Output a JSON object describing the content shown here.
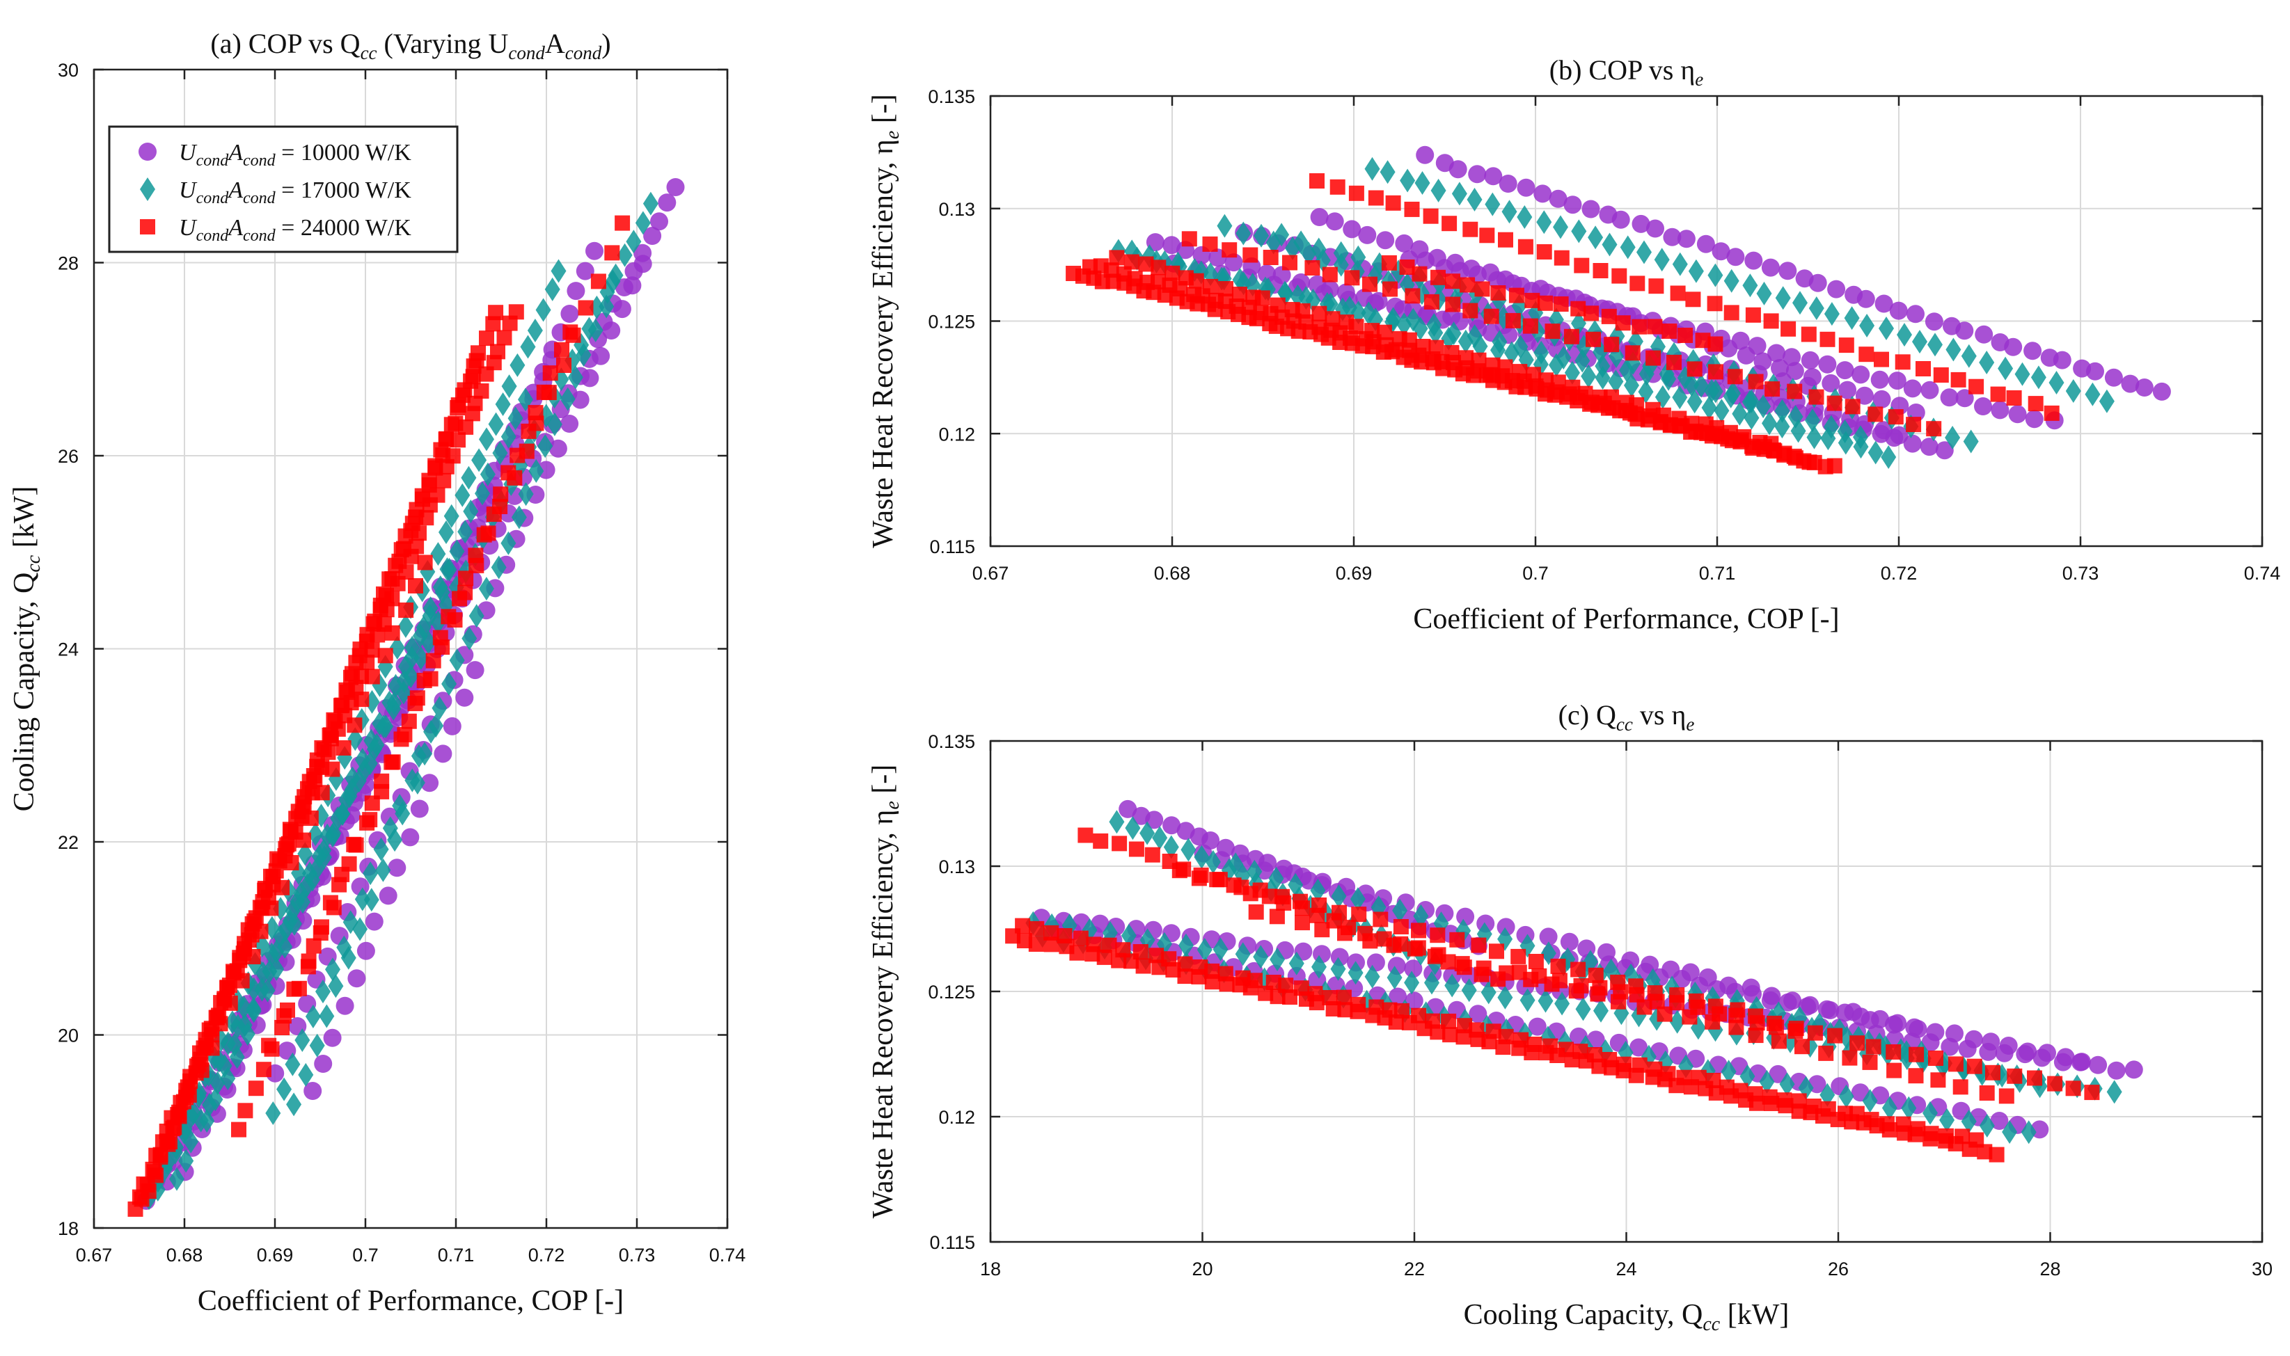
{
  "colors": {
    "s1": "#9933cc",
    "s2": "#119999",
    "s3": "#ff0000",
    "grid": "#d9d9d9",
    "axis": "#222222",
    "text": "#111111"
  },
  "chart_data": [
    {
      "id": "a",
      "type": "scatter",
      "title": "(a) COP vs Q",
      "title_sub": "cc",
      "title_rest": " (Varying U",
      "title_sub2": "cond",
      "title_rest2": "A",
      "title_sub3": "cond",
      "title_end": ")",
      "xlabel": "Coefficient of Performance, COP [-]",
      "ylabel_main": "Cooling Capacity, Q",
      "ylabel_sub": "cc",
      "ylabel_end": " [kW]",
      "xlim": [
        0.67,
        0.74
      ],
      "ylim": [
        18,
        30
      ],
      "xticks": [
        0.67,
        0.68,
        0.69,
        0.7,
        0.71,
        0.72,
        0.73,
        0.74
      ],
      "xtick_labels": [
        "0.67",
        "0.68",
        "0.69",
        "0.7",
        "0.71",
        "0.72",
        "0.73",
        "0.74"
      ],
      "yticks": [
        18,
        20,
        22,
        24,
        26,
        28,
        30
      ],
      "ytick_labels": [
        "18",
        "20",
        "22",
        "24",
        "26",
        "28",
        "30"
      ],
      "grid": true,
      "legend_position": "top-left",
      "legend": [
        {
          "series": "s1",
          "marker": "circle",
          "label_pre": "U",
          "label_sub": "cond",
          "label_mid": "A",
          "label_sub2": "cond",
          "label_val": " = 10000 W/K"
        },
        {
          "series": "s2",
          "marker": "diamond",
          "label_pre": "U",
          "label_sub": "cond",
          "label_mid": "A",
          "label_sub2": "cond",
          "label_val": " = 17000 W/K"
        },
        {
          "series": "s3",
          "marker": "square",
          "label_pre": "U",
          "label_sub": "cond",
          "label_mid": "A",
          "label_sub2": "cond",
          "label_val": " = 24000 W/K"
        }
      ],
      "series": [
        {
          "key": "s1",
          "marker": "circle",
          "segments": [
            {
              "x0": 0.676,
              "y0": 18.3,
              "x1": 0.7345,
              "y1": 28.8,
              "n": 60
            },
            {
              "x0": 0.678,
              "y0": 18.5,
              "x1": 0.7255,
              "y1": 28.1,
              "n": 48
            },
            {
              "x0": 0.68,
              "y0": 18.6,
              "x1": 0.7205,
              "y1": 27.0,
              "n": 40
            },
            {
              "x0": 0.69,
              "y0": 19.6,
              "x1": 0.7305,
              "y1": 28.0,
              "n": 36
            },
            {
              "x0": 0.6835,
              "y0": 19.2,
              "x1": 0.7145,
              "y1": 25.6,
              "n": 30
            },
            {
              "x0": 0.694,
              "y0": 19.4,
              "x1": 0.712,
              "y1": 23.8,
              "n": 16
            }
          ]
        },
        {
          "key": "s2",
          "marker": "diamond",
          "segments": [
            {
              "x0": 0.676,
              "y0": 18.3,
              "x1": 0.7315,
              "y1": 28.6,
              "n": 58
            },
            {
              "x0": 0.677,
              "y0": 18.4,
              "x1": 0.7215,
              "y1": 27.9,
              "n": 50
            },
            {
              "x0": 0.679,
              "y0": 18.5,
              "x1": 0.7175,
              "y1": 26.6,
              "n": 42
            },
            {
              "x0": 0.69,
              "y0": 19.2,
              "x1": 0.7275,
              "y1": 27.8,
              "n": 36
            },
            {
              "x0": 0.6825,
              "y0": 19.1,
              "x1": 0.7095,
              "y1": 24.8,
              "n": 26
            },
            {
              "x0": 0.692,
              "y0": 19.3,
              "x1": 0.708,
              "y1": 23.2,
              "n": 14
            }
          ]
        },
        {
          "key": "s3",
          "marker": "square",
          "segments": [
            {
              "x0": 0.6745,
              "y0": 18.2,
              "x1": 0.7165,
              "y1": 27.5,
              "n": 70
            },
            {
              "x0": 0.6755,
              "y0": 18.3,
              "x1": 0.7145,
              "y1": 27.5,
              "n": 64
            },
            {
              "x0": 0.676,
              "y0": 18.4,
              "x1": 0.7125,
              "y1": 27.0,
              "n": 54
            },
            {
              "x0": 0.686,
              "y0": 19.0,
              "x1": 0.7225,
              "y1": 27.3,
              "n": 40
            },
            {
              "x0": 0.6895,
              "y0": 19.9,
              "x1": 0.7285,
              "y1": 28.4,
              "n": 30
            },
            {
              "x0": 0.6785,
              "y0": 18.9,
              "x1": 0.7065,
              "y1": 24.9,
              "n": 26
            }
          ]
        }
      ]
    },
    {
      "id": "b",
      "type": "scatter",
      "title": "(b) COP vs η",
      "title_sub": "e",
      "xlabel": "Coefficient of Performance, COP [-]",
      "ylabel_main": "Waste Heat Recovery Efficiency, η",
      "ylabel_sub": "e",
      "ylabel_end": " [-]",
      "xlim": [
        0.67,
        0.74
      ],
      "ylim": [
        0.115,
        0.135
      ],
      "xticks": [
        0.67,
        0.68,
        0.69,
        0.7,
        0.71,
        0.72,
        0.73,
        0.74
      ],
      "xtick_labels": [
        "0.67",
        "0.68",
        "0.69",
        "0.7",
        "0.71",
        "0.72",
        "0.73",
        "0.74"
      ],
      "yticks": [
        0.115,
        0.12,
        0.125,
        0.13,
        0.135
      ],
      "ytick_labels": [
        "0.115",
        "0.12",
        "0.125",
        "0.13",
        "0.135"
      ],
      "grid": true,
      "series": [
        {
          "key": "s1",
          "marker": "circle",
          "segments": [
            {
              "x0": 0.679,
              "y0": 0.1285,
              "x1": 0.7225,
              "y1": 0.1192,
              "n": 50
            },
            {
              "x0": 0.684,
              "y0": 0.129,
              "x1": 0.72,
              "y1": 0.12,
              "n": 40
            },
            {
              "x0": 0.694,
              "y0": 0.1323,
              "x1": 0.7345,
              "y1": 0.1218,
              "n": 46
            },
            {
              "x0": 0.688,
              "y0": 0.1296,
              "x1": 0.721,
              "y1": 0.121,
              "n": 36
            },
            {
              "x0": 0.693,
              "y0": 0.1278,
              "x1": 0.7285,
              "y1": 0.1205,
              "n": 38
            },
            {
              "x0": 0.68,
              "y0": 0.1275,
              "x1": 0.715,
              "y1": 0.1222,
              "n": 26
            }
          ]
        },
        {
          "key": "s2",
          "marker": "diamond",
          "segments": [
            {
              "x0": 0.677,
              "y0": 0.1282,
              "x1": 0.7195,
              "y1": 0.119,
              "n": 52
            },
            {
              "x0": 0.683,
              "y0": 0.1292,
              "x1": 0.718,
              "y1": 0.1198,
              "n": 40
            },
            {
              "x0": 0.691,
              "y0": 0.1318,
              "x1": 0.7315,
              "y1": 0.1215,
              "n": 44
            },
            {
              "x0": 0.686,
              "y0": 0.1288,
              "x1": 0.724,
              "y1": 0.1196,
              "n": 36
            },
            {
              "x0": 0.678,
              "y0": 0.1278,
              "x1": 0.712,
              "y1": 0.1215,
              "n": 30
            }
          ]
        },
        {
          "key": "s3",
          "marker": "square",
          "segments": [
            {
              "x0": 0.6745,
              "y0": 0.1272,
              "x1": 0.7165,
              "y1": 0.1185,
              "n": 75
            },
            {
              "x0": 0.6755,
              "y0": 0.1275,
              "x1": 0.715,
              "y1": 0.1188,
              "n": 64
            },
            {
              "x0": 0.677,
              "y0": 0.1278,
              "x1": 0.713,
              "y1": 0.1195,
              "n": 50
            },
            {
              "x0": 0.688,
              "y0": 0.1312,
              "x1": 0.7285,
              "y1": 0.121,
              "n": 40
            },
            {
              "x0": 0.681,
              "y0": 0.1287,
              "x1": 0.722,
              "y1": 0.1202,
              "n": 38
            },
            {
              "x0": 0.692,
              "y0": 0.1275,
              "x1": 0.71,
              "y1": 0.124,
              "n": 22
            }
          ]
        }
      ]
    },
    {
      "id": "c",
      "type": "scatter",
      "title": "(c) Q",
      "title_sub": "cc",
      "title_rest": " vs η",
      "title_sub2": "e",
      "xlabel_main": "Cooling Capacity, Q",
      "xlabel_sub": "cc",
      "xlabel_end": " [kW]",
      "ylabel_main": "Waste Heat Recovery Efficiency, η",
      "ylabel_sub": "e",
      "ylabel_end": " [-]",
      "xlim": [
        18,
        30
      ],
      "ylim": [
        0.115,
        0.135
      ],
      "xticks": [
        18,
        20,
        22,
        24,
        26,
        28,
        30
      ],
      "xtick_labels": [
        "18",
        "20",
        "22",
        "24",
        "26",
        "28",
        "30"
      ],
      "yticks": [
        0.115,
        0.12,
        0.125,
        0.13,
        0.135
      ],
      "ytick_labels": [
        "0.115",
        "0.12",
        "0.125",
        "0.13",
        "0.135"
      ],
      "grid": true,
      "series": [
        {
          "key": "s1",
          "marker": "circle",
          "segments": [
            {
              "x0": 18.5,
              "y0": 0.128,
              "x1": 28.8,
              "y1": 0.1218,
              "n": 60
            },
            {
              "x0": 18.6,
              "y0": 0.1275,
              "x1": 27.9,
              "y1": 0.1195,
              "n": 50
            },
            {
              "x0": 19.3,
              "y0": 0.1323,
              "x1": 22.6,
              "y1": 0.1268,
              "n": 26
            },
            {
              "x0": 20.0,
              "y0": 0.1305,
              "x1": 26.7,
              "y1": 0.1235,
              "n": 36
            },
            {
              "x0": 23.3,
              "y0": 0.1265,
              "x1": 28.3,
              "y1": 0.1222,
              "n": 30
            }
          ]
        },
        {
          "key": "s2",
          "marker": "diamond",
          "segments": [
            {
              "x0": 18.4,
              "y0": 0.1278,
              "x1": 28.6,
              "y1": 0.121,
              "n": 58
            },
            {
              "x0": 18.5,
              "y0": 0.1272,
              "x1": 27.8,
              "y1": 0.1193,
              "n": 50
            },
            {
              "x0": 19.2,
              "y0": 0.1318,
              "x1": 22.2,
              "y1": 0.1262,
              "n": 24
            },
            {
              "x0": 20.3,
              "y0": 0.13,
              "x1": 26.8,
              "y1": 0.1225,
              "n": 34
            },
            {
              "x0": 23.4,
              "y0": 0.126,
              "x1": 27.9,
              "y1": 0.1212,
              "n": 26
            }
          ]
        },
        {
          "key": "s3",
          "marker": "square",
          "segments": [
            {
              "x0": 18.2,
              "y0": 0.1272,
              "x1": 27.5,
              "y1": 0.1185,
              "n": 75
            },
            {
              "x0": 18.3,
              "y0": 0.1276,
              "x1": 27.3,
              "y1": 0.119,
              "n": 66
            },
            {
              "x0": 18.9,
              "y0": 0.1313,
              "x1": 22.8,
              "y1": 0.1255,
              "n": 26
            },
            {
              "x0": 19.8,
              "y0": 0.1298,
              "x1": 25.6,
              "y1": 0.1236,
              "n": 32
            },
            {
              "x0": 23.0,
              "y0": 0.1258,
              "x1": 28.4,
              "y1": 0.121,
              "n": 30
            },
            {
              "x0": 20.5,
              "y0": 0.1282,
              "x1": 27.6,
              "y1": 0.1208,
              "n": 34
            }
          ]
        }
      ]
    }
  ]
}
